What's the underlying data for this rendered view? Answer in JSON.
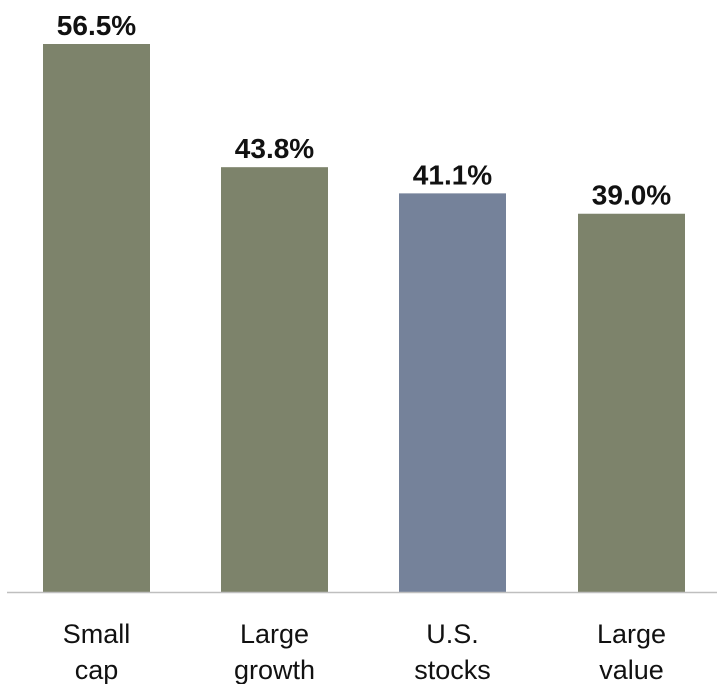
{
  "chart_data": {
    "type": "bar",
    "categories": [
      [
        "Small",
        "cap"
      ],
      [
        "Large",
        "growth"
      ],
      [
        "U.S.",
        "stocks"
      ],
      [
        "Large",
        "value"
      ]
    ],
    "values": [
      56.5,
      43.8,
      41.1,
      39.0
    ],
    "value_labels": [
      "56.5%",
      "43.8%",
      "41.1%",
      "39.0%"
    ],
    "bar_colors": [
      "#7d836b",
      "#7d836b",
      "#75829a",
      "#7d836b"
    ],
    "baseline_color": "#bfbfbf",
    "ylim": [
      0,
      56.5
    ],
    "grid": false,
    "legend": "none"
  }
}
